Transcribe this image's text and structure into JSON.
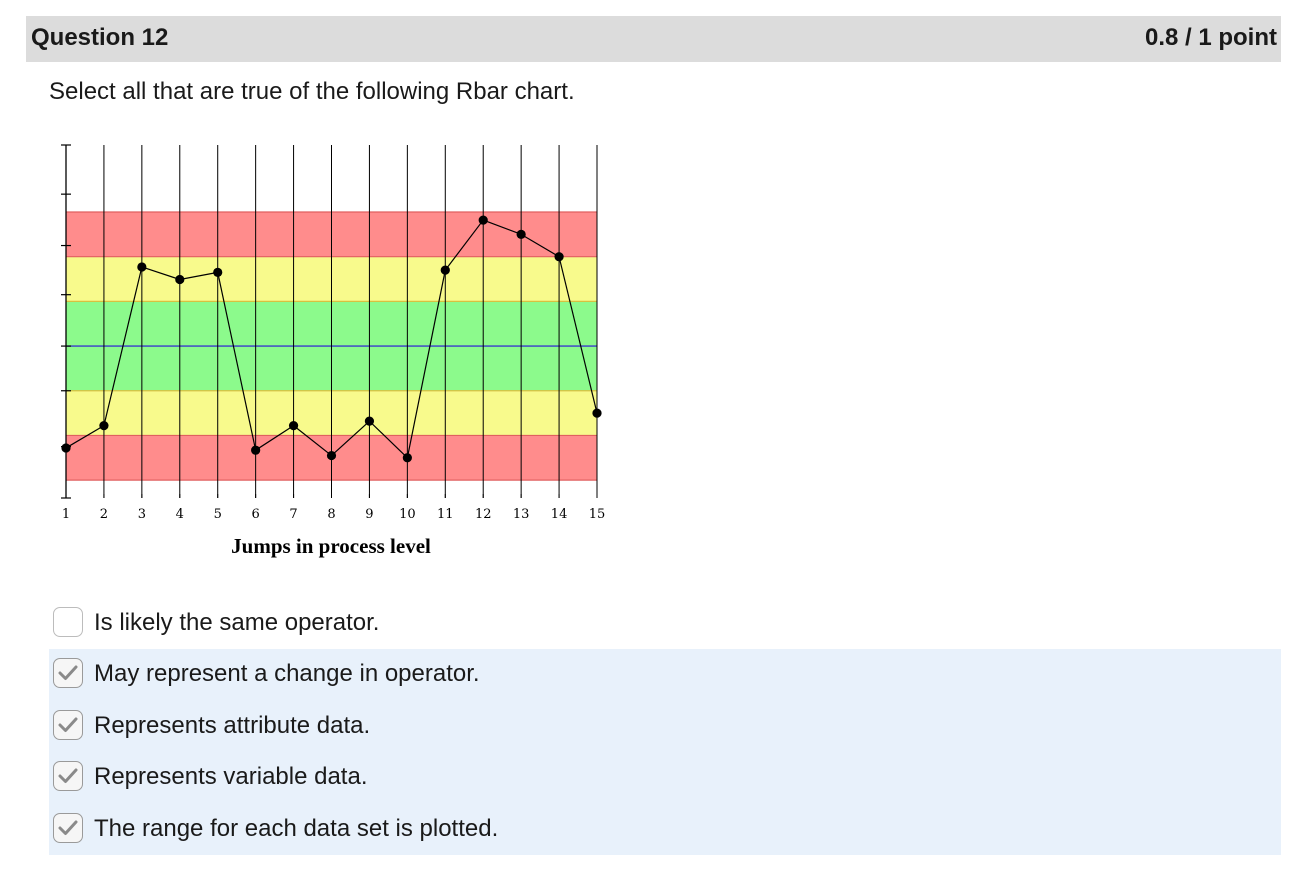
{
  "question": {
    "title": "Question 12",
    "score": "0.8 / 1 point",
    "prompt": "Select all that are true of the following Rbar chart."
  },
  "chart_data": {
    "type": "line",
    "title": "",
    "xlabel": "Jumps in process level",
    "ylabel": "",
    "x": [
      1,
      2,
      3,
      4,
      5,
      6,
      7,
      8,
      9,
      10,
      11,
      12,
      13,
      14,
      15
    ],
    "x_tick_labels": [
      "1",
      "2",
      "3",
      "4",
      "5",
      "6",
      "7",
      "8",
      "9",
      "10",
      "11",
      "12",
      "13",
      "14",
      "15"
    ],
    "values": [
      -2.28,
      -1.78,
      1.77,
      1.49,
      1.65,
      -2.33,
      -1.78,
      -2.45,
      -1.68,
      -2.5,
      1.7,
      2.82,
      2.5,
      2.0,
      -1.5
    ],
    "ylim": [
      -3.4,
      4.5
    ],
    "y_ticks": [
      -3.4,
      -2.25,
      -1.0,
      0,
      1.15,
      2.25,
      3.4,
      4.5
    ],
    "bands": [
      {
        "from": 2.0,
        "to": 3.0,
        "color": "#ff8c8c"
      },
      {
        "from": 1.0,
        "to": 2.0,
        "color": "#f8fa8c"
      },
      {
        "from": 0.0,
        "to": 1.0,
        "color": "#8cfa8c"
      },
      {
        "from": -1.0,
        "to": 0.0,
        "color": "#8cfa8c"
      },
      {
        "from": -2.0,
        "to": -1.0,
        "color": "#f8fa8c"
      },
      {
        "from": -3.0,
        "to": -2.0,
        "color": "#ff8c8c"
      }
    ],
    "center_line": 0,
    "grid": true,
    "colors": {
      "center": "#3a3acc",
      "band_edge_red": "#e06060",
      "band_edge_yellow": "#d8c040",
      "line": "#000000"
    }
  },
  "answers": [
    {
      "label": "Is likely the same operator.",
      "checked": false
    },
    {
      "label": "May represent a change in operator.",
      "checked": true
    },
    {
      "label": "Represents attribute data.",
      "checked": true
    },
    {
      "label": "Represents variable data.",
      "checked": true
    },
    {
      "label": "The range for each data set is plotted.",
      "checked": true
    }
  ],
  "colors": {
    "header_bg": "#dcdcdc",
    "selected_row_bg": "#e8f1fb",
    "checkmark": "#8a8a8a"
  }
}
